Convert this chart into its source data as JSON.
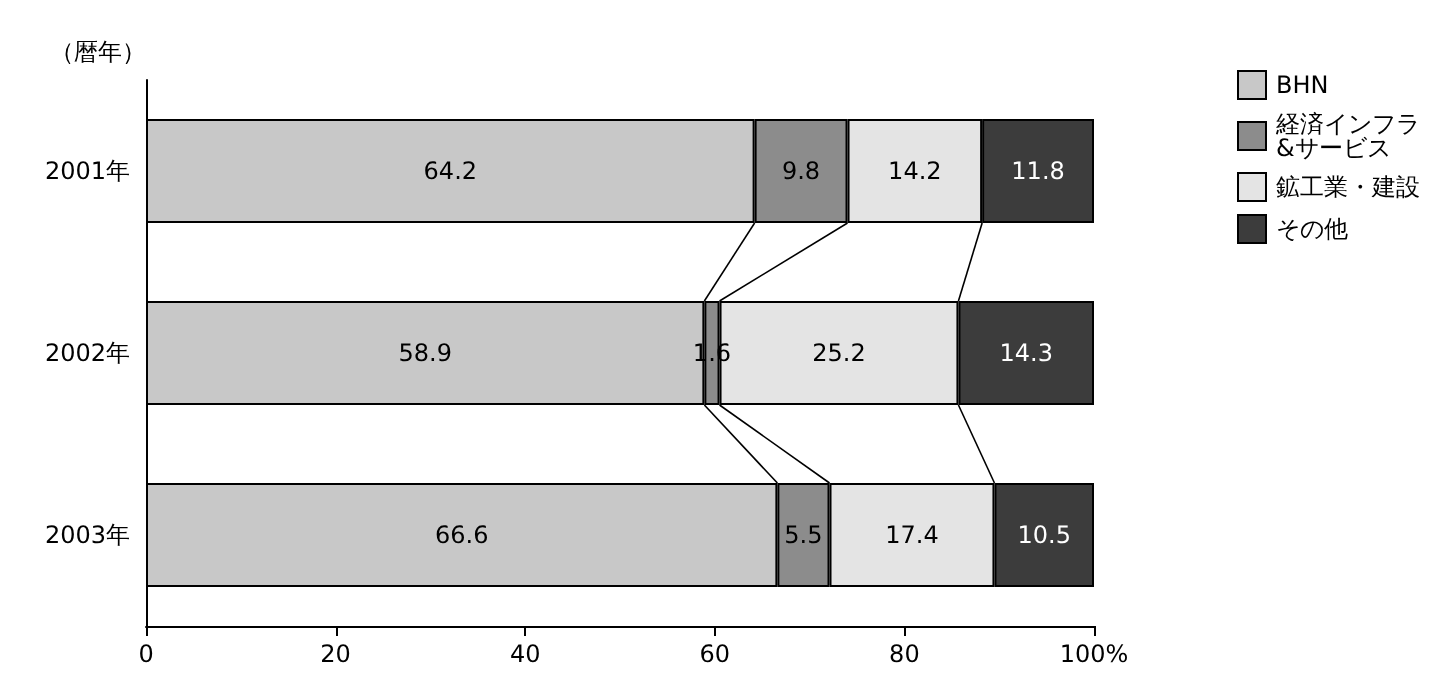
{
  "chart_data": {
    "type": "bar",
    "orientation": "horizontal",
    "stacked": true,
    "ylabel": "（暦年）",
    "categories": [
      "2001年",
      "2002年",
      "2003年"
    ],
    "series": [
      {
        "name": "BHN",
        "color": "#c8c8c8",
        "values": [
          64.2,
          58.9,
          66.6
        ]
      },
      {
        "name": "経済インフラ&サービス",
        "color": "#8c8c8c",
        "values": [
          9.8,
          1.6,
          5.5
        ]
      },
      {
        "name": "鉱工業・建設",
        "color": "#e4e4e4",
        "values": [
          14.2,
          25.2,
          17.4
        ]
      },
      {
        "name": "その他",
        "color": "#3c3c3c",
        "values": [
          11.8,
          14.3,
          10.5
        ]
      }
    ],
    "xlim": [
      0,
      100
    ],
    "xticks": [
      0,
      20,
      40,
      60,
      80,
      {
        "value": 100,
        "label": "100%"
      }
    ],
    "data_labels": true,
    "grid": false,
    "legend": "top right"
  }
}
